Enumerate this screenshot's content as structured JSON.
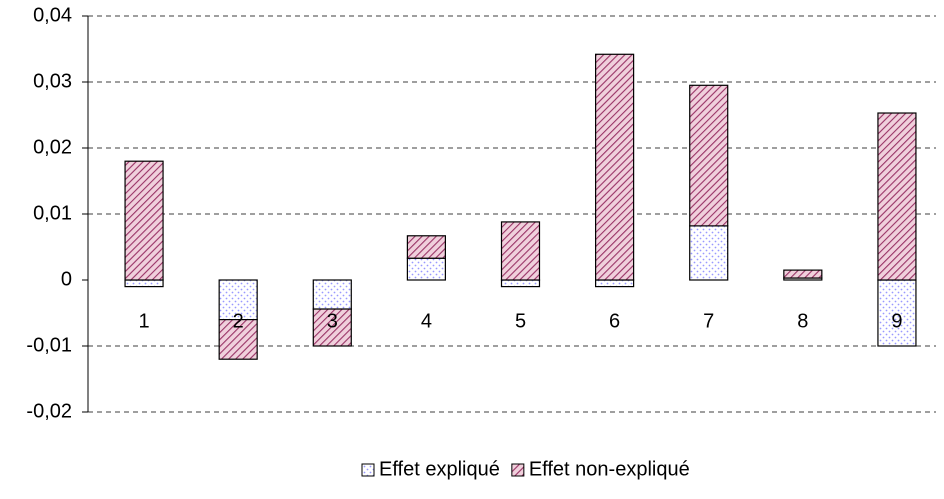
{
  "chart_data": {
    "type": "bar",
    "stacked": true,
    "categories": [
      "1",
      "2",
      "3",
      "4",
      "5",
      "6",
      "7",
      "8",
      "9"
    ],
    "series": [
      {
        "name": "Effet expliqué",
        "color": "#9999ff",
        "values": [
          -0.001,
          -0.006,
          -0.0044,
          0.0033,
          -0.001,
          -0.001,
          0.0082,
          0.0003,
          -0.01
        ]
      },
      {
        "name": "Effet non-expliqué",
        "color": "#993366",
        "values": [
          0.018,
          -0.006,
          -0.0056,
          0.0034,
          0.0088,
          0.0342,
          0.0213,
          0.0012,
          0.0253
        ]
      }
    ],
    "ylim": [
      -0.02,
      0.04
    ],
    "yticks": [
      {
        "value": -0.02,
        "label": "-0,02"
      },
      {
        "value": -0.01,
        "label": "-0,01"
      },
      0,
      {
        "value": 0.01,
        "label": "0,01"
      },
      {
        "value": 0.02,
        "label": "0,02"
      },
      {
        "value": 0.03,
        "label": "0,03"
      },
      {
        "value": 0.04,
        "label": "0,04"
      }
    ],
    "grid": true,
    "legend": "bottom"
  }
}
